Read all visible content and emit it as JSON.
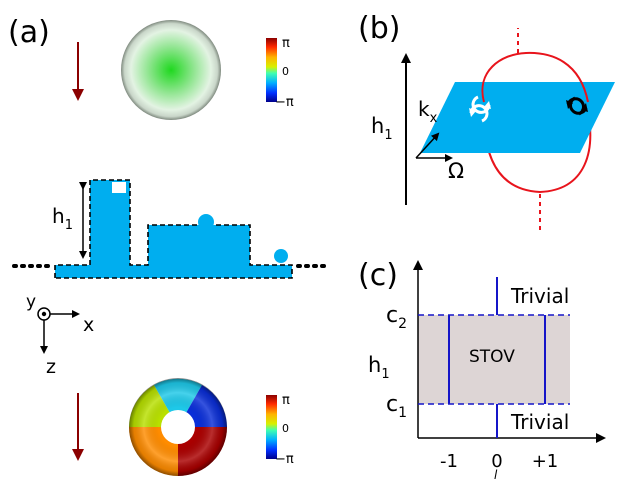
{
  "panel_a": {
    "label": "(a)",
    "colorbar_top": {
      "max": "π",
      "mid": "0",
      "min": "−π"
    },
    "colorbar_bottom": {
      "max": "π",
      "mid": "0",
      "min": "−π"
    },
    "height_label": {
      "main": "h",
      "sub": "1"
    },
    "axes": {
      "y": "y",
      "x": "x",
      "z": "z"
    }
  },
  "panel_b": {
    "label": "(b)",
    "axis_label": {
      "main": "h",
      "sub": "1"
    },
    "kx_label": {
      "main": "k",
      "sub": "x"
    },
    "omega_label": "Ω"
  },
  "panel_c": {
    "label": "(c)",
    "c2_label": {
      "main": "c",
      "sub": "2"
    },
    "c1_label": {
      "main": "c",
      "sub": "1"
    },
    "h1_label": {
      "main": "h",
      "sub": "1"
    },
    "trivial_top": "Trivial",
    "trivial_bottom": "Trivial",
    "stov_label": "STOV",
    "ticks": [
      "-1",
      "0",
      "+1"
    ],
    "x_axis_label": "l"
  },
  "colors": {
    "beam_blue": "#00aeef",
    "arrow_red": "#8b0000",
    "loop_red": "#e8141c",
    "line_blue": "#1515c8",
    "stov_fill": "#ddd5d5"
  }
}
